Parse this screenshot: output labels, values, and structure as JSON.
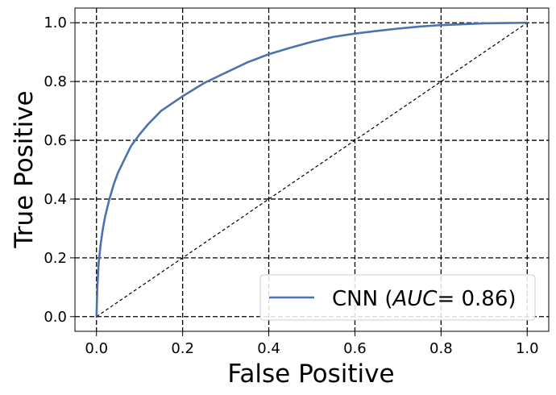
{
  "chart_data": {
    "type": "line",
    "xlabel": "False Positive",
    "ylabel": "True Positive",
    "xlim": [
      -0.05,
      1.05
    ],
    "ylim": [
      -0.05,
      1.05
    ],
    "x_ticks": [
      "0.0",
      "0.2",
      "0.4",
      "0.6",
      "0.8",
      "1.0"
    ],
    "y_ticks": [
      "0.0",
      "0.2",
      "0.4",
      "0.6",
      "0.8",
      "1.0"
    ],
    "grid": true,
    "legend_position": "lower-right",
    "series": [
      {
        "name": "CNN",
        "label_prefix": "CNN (",
        "label_auc": "AUC",
        "label_value": "= 0.86)",
        "color": "#4c72b0",
        "x": [
          0.0,
          0.002,
          0.005,
          0.01,
          0.015,
          0.02,
          0.03,
          0.04,
          0.05,
          0.06,
          0.08,
          0.1,
          0.12,
          0.15,
          0.2,
          0.25,
          0.3,
          0.35,
          0.4,
          0.45,
          0.5,
          0.55,
          0.6,
          0.65,
          0.7,
          0.75,
          0.8,
          0.85,
          0.9,
          0.95,
          1.0
        ],
        "y": [
          0.0,
          0.1,
          0.18,
          0.25,
          0.3,
          0.34,
          0.4,
          0.45,
          0.49,
          0.52,
          0.58,
          0.62,
          0.655,
          0.7,
          0.75,
          0.795,
          0.83,
          0.865,
          0.893,
          0.915,
          0.935,
          0.952,
          0.963,
          0.972,
          0.98,
          0.987,
          0.992,
          0.995,
          0.998,
          0.999,
          1.0
        ]
      }
    ],
    "reference_line": {
      "x": [
        0,
        1
      ],
      "y": [
        0,
        1
      ],
      "style": "dashed",
      "color": "#000000"
    }
  }
}
